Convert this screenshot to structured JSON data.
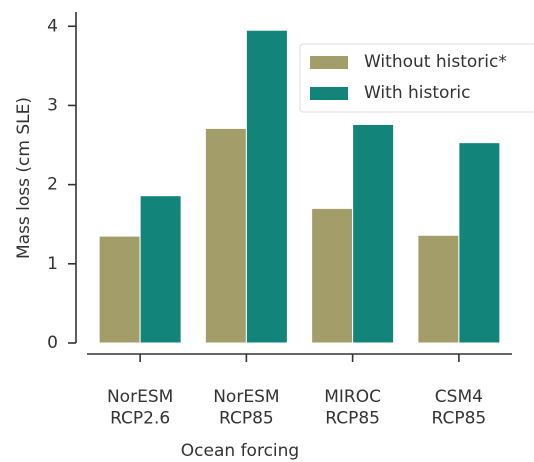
{
  "chart_data": {
    "type": "bar",
    "x_label": "Ocean forcing",
    "y_label": "Mass loss (cm SLE)",
    "categories": [
      "NorESM\nRCP2.6",
      "NorESM\nRCP85",
      "MIROC\nRCP85",
      "CSM4\nRCP85"
    ],
    "series": [
      {
        "name": "Without historic*",
        "color": "#a39d6a",
        "values": [
          1.35,
          2.71,
          1.7,
          1.36
        ]
      },
      {
        "name": "With historic",
        "color": "#138479",
        "values": [
          1.86,
          3.95,
          2.76,
          2.53
        ]
      }
    ],
    "ylim": [
      0,
      4.18
    ],
    "yticks": [
      0,
      1,
      2,
      3,
      4
    ],
    "grid": false,
    "legend": "upper right"
  }
}
